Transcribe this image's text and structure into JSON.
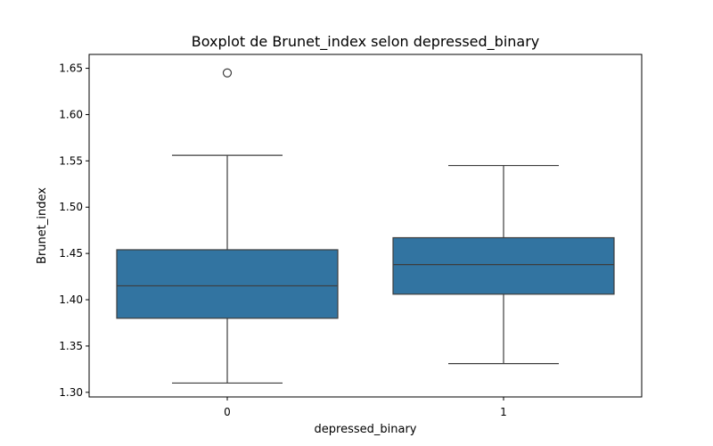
{
  "chart_data": {
    "type": "box",
    "title": "Boxplot de Brunet_index selon depressed_binary",
    "xlabel": "depressed_binary",
    "ylabel": "Brunet_index",
    "ylim": [
      1.295,
      1.665
    ],
    "yticks": [
      1.3,
      1.35,
      1.4,
      1.45,
      1.5,
      1.55,
      1.6,
      1.65
    ],
    "ytick_labels": [
      "1.30",
      "1.35",
      "1.40",
      "1.45",
      "1.50",
      "1.55",
      "1.60",
      "1.65"
    ],
    "categories": [
      "0",
      "1"
    ],
    "box_color": "#3274a1",
    "edge_color": "#3d3d3d",
    "grid": false,
    "boxes": [
      {
        "category": "0",
        "whisker_low": 1.31,
        "q1": 1.38,
        "median": 1.415,
        "q3": 1.454,
        "whisker_high": 1.556,
        "outliers": [
          1.645
        ]
      },
      {
        "category": "1",
        "whisker_low": 1.331,
        "q1": 1.406,
        "median": 1.438,
        "q3": 1.467,
        "whisker_high": 1.545,
        "outliers": []
      }
    ]
  }
}
